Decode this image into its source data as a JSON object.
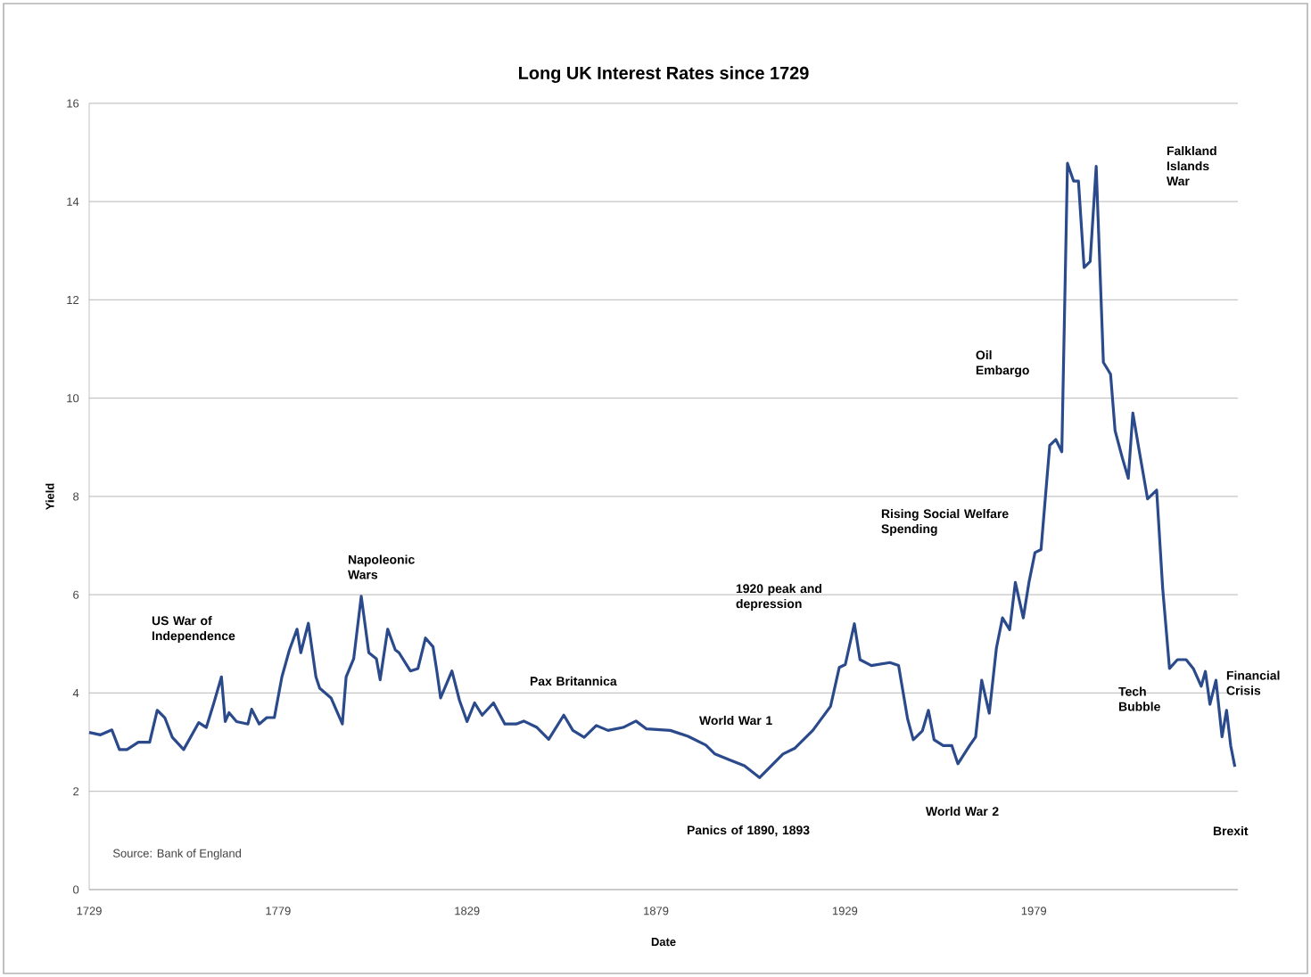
{
  "chart_data": {
    "type": "line",
    "title": "Long UK Interest Rates since 1729",
    "xlabel": "Date",
    "ylabel": "Yield",
    "xlim": [
      1729,
      2033
    ],
    "xticks": [
      1729,
      1779,
      1829,
      1879,
      1929,
      1979
    ],
    "ylim": [
      0,
      16
    ],
    "yticks": [
      0,
      2,
      4,
      6,
      8,
      10,
      12,
      14,
      16
    ],
    "grid": "y",
    "marker": "none",
    "line_style": "solid",
    "x": [
      1729,
      1732,
      1735,
      1737,
      1739,
      1742,
      1745,
      1747,
      1749,
      1751,
      1754,
      1758,
      1760,
      1762,
      1764,
      1765,
      1766,
      1768,
      1771,
      1772,
      1774,
      1776,
      1778,
      1780,
      1782,
      1784,
      1785,
      1787,
      1789,
      1790,
      1793,
      1796,
      1797,
      1799,
      1801,
      1803,
      1805,
      1806,
      1808,
      1810,
      1811,
      1814,
      1816,
      1818,
      1820,
      1821,
      1822,
      1825,
      1827,
      1829,
      1831,
      1833,
      1836,
      1839,
      1842,
      1844,
      1847.5,
      1850.6,
      1854.6,
      1857,
      1860,
      1863.2,
      1866.3,
      1870.3,
      1873.7,
      1876.5,
      1882.8,
      1887.5,
      1892.2,
      1894.6,
      1898.5,
      1902.4,
      1906.4,
      1909.5,
      1912.6,
      1915.8,
      1920.5,
      1925.2,
      1927.5,
      1929.1,
      1931.5,
      1933,
      1936,
      1940.9,
      1943.2,
      1945.6,
      1947.1,
      1949.5,
      1951.1,
      1952.6,
      1955,
      1957.3,
      1958.9,
      1962,
      1963.6,
      1965.2,
      1967.2,
      1969.1,
      1970.7,
      1972.6,
      1974.1,
      1976.2,
      1977.7,
      1979.3,
      1980.9,
      1983.2,
      1984.8,
      1986.4,
      1987.9,
      1989.5,
      1990.8,
      1992.3,
      1993.9,
      1995.5,
      1997.4,
      1999.3,
      2000.5,
      2002.4,
      2004,
      2005.2,
      2006.8,
      2009.1,
      2011.5,
      2013.1,
      2014.9,
      2017,
      2019.3,
      2021.2,
      2023.3,
      2024.4,
      2025.6,
      2027.2,
      2028.8,
      2030,
      2031.1,
      2032.2
    ],
    "series": [
      {
        "color": "#2b4a8b",
        "values": [
          3.2,
          3.15,
          3.25,
          2.85,
          2.85,
          3.0,
          3.0,
          3.65,
          3.5,
          3.1,
          2.85,
          3.4,
          3.3,
          3.8,
          4.33,
          3.42,
          3.6,
          3.42,
          3.37,
          3.67,
          3.37,
          3.5,
          3.5,
          4.33,
          4.88,
          5.3,
          4.82,
          5.42,
          4.33,
          4.1,
          3.9,
          3.37,
          4.33,
          4.7,
          5.97,
          4.82,
          4.7,
          4.27,
          5.3,
          4.88,
          4.82,
          4.45,
          4.5,
          5.12,
          4.94,
          4.45,
          3.9,
          4.45,
          3.85,
          3.42,
          3.8,
          3.55,
          3.8,
          3.37,
          3.37,
          3.43,
          3.3,
          3.06,
          3.55,
          3.24,
          3.1,
          3.34,
          3.24,
          3.3,
          3.43,
          3.27,
          3.24,
          3.12,
          2.94,
          2.76,
          2.64,
          2.52,
          2.28,
          2.52,
          2.76,
          2.88,
          3.24,
          3.73,
          4.52,
          4.58,
          5.41,
          4.68,
          4.56,
          4.62,
          4.56,
          3.47,
          3.05,
          3.23,
          3.65,
          3.05,
          2.93,
          2.93,
          2.56,
          2.93,
          3.11,
          4.26,
          3.59,
          4.92,
          5.53,
          5.29,
          6.25,
          5.53,
          6.25,
          6.86,
          6.92,
          9.04,
          9.16,
          8.91,
          14.78,
          14.42,
          14.42,
          12.66,
          12.78,
          14.72,
          10.73,
          10.49,
          9.34,
          8.79,
          8.37,
          9.7,
          8.97,
          7.95,
          8.13,
          6.13,
          4.5,
          4.68,
          4.68,
          4.5,
          4.14,
          4.44,
          3.77,
          4.26,
          3.11,
          3.65,
          2.93,
          2.5
        ]
      }
    ],
    "annotations": [
      "US  War of Independence",
      "Napoleonic Wars",
      "Pax Britannica",
      "World War 1",
      "Panics of 1890, 1893",
      "1920 peak and depression",
      "Rising Social Welfare Spending",
      "Oil Embargo",
      "World War 2",
      "Falkland Islands War",
      "Tech Bubble",
      "Financial Crisis",
      "Brexit",
      "Source: Bank of England"
    ]
  }
}
